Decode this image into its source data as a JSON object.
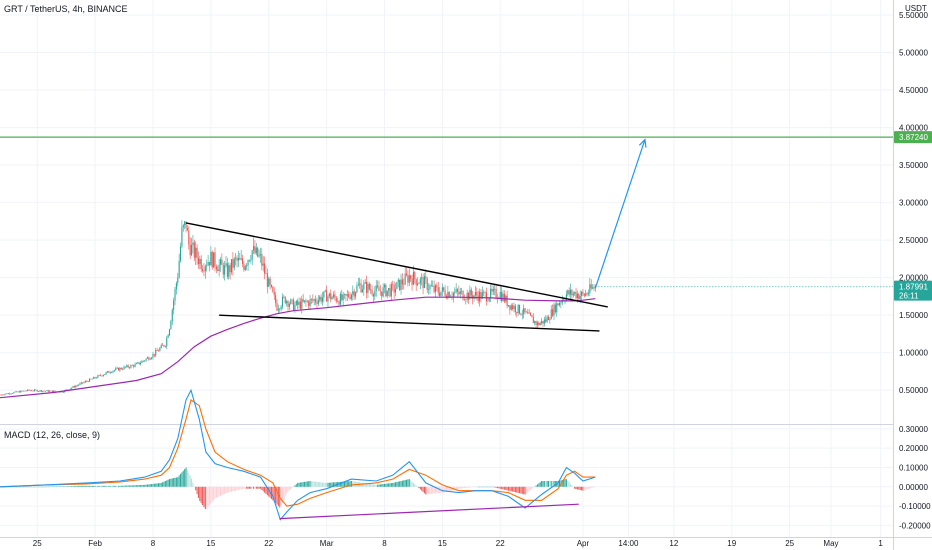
{
  "header": {
    "symbol_line": "GRT / TetherUS, 4h, BINANCE",
    "macd_line": "MACD (12, 26, close, 9)"
  },
  "colors": {
    "up": "#26a69a",
    "down": "#ef5350",
    "ma": "#9c27b0",
    "horizontal_line": "#4caf50",
    "arrow": "#2196f3",
    "macd": "#2196f3",
    "signal": "#ff6d00",
    "tag_green": "#4caf50",
    "tag_price": "#26a69a",
    "divergence_line": "#9c27b0"
  },
  "chart_data": {
    "type": "candlestick",
    "price_axis": {
      "unit_label": "USDT",
      "ticks": [
        "5.50000",
        "5.00000",
        "4.50000",
        "4.00000",
        "3.50000",
        "3.00000",
        "2.50000",
        "2.00000",
        "1.50000",
        "1.00000",
        "0.50000"
      ],
      "tick_values": [
        5.5,
        5.0,
        4.5,
        4.0,
        3.5,
        3.0,
        2.5,
        2.0,
        1.5,
        1.0,
        0.5
      ],
      "ylim": [
        0.05,
        5.7
      ]
    },
    "macd_axis": {
      "ticks": [
        "0.30000",
        "0.20000",
        "0.10000",
        "0.00000",
        "-0.10000",
        "-0.20000"
      ],
      "tick_values": [
        0.3,
        0.2,
        0.1,
        0.0,
        -0.1,
        -0.2
      ],
      "ylim": [
        -0.26,
        0.32
      ]
    },
    "time_axis": {
      "labels": [
        "25",
        "Feb",
        "8",
        "15",
        "22",
        "Mar",
        "8",
        "15",
        "22",
        "Apr",
        "14:00",
        "12",
        "19",
        "25",
        "May",
        "1"
      ],
      "label_days": [
        -7,
        0,
        7,
        14,
        21,
        28,
        35,
        42,
        49,
        59,
        64.5,
        70,
        77,
        84,
        89,
        95
      ],
      "xlim_days": [
        -11.5,
        96.5
      ]
    },
    "price_path": {
      "x_days": [
        -11.5,
        -8,
        -4,
        -1,
        2,
        5,
        7,
        8.5,
        9,
        10,
        10.5,
        11,
        11.3,
        12,
        13,
        14,
        15,
        16,
        17,
        18,
        19,
        20,
        21,
        22,
        23,
        24,
        26,
        28,
        30,
        32,
        34,
        36,
        38,
        40,
        41,
        43,
        45,
        47,
        49,
        50,
        52,
        53.5,
        54.5,
        56,
        57,
        58,
        59,
        60.5
      ],
      "close": [
        0.44,
        0.5,
        0.48,
        0.62,
        0.76,
        0.84,
        0.97,
        1.12,
        1.35,
        2.05,
        2.6,
        2.72,
        2.45,
        2.33,
        2.18,
        2.26,
        2.16,
        2.08,
        2.22,
        2.18,
        2.36,
        2.25,
        1.9,
        1.62,
        1.72,
        1.62,
        1.68,
        1.76,
        1.7,
        1.9,
        1.82,
        1.83,
        2.02,
        1.92,
        1.83,
        1.8,
        1.77,
        1.76,
        1.79,
        1.65,
        1.52,
        1.38,
        1.43,
        1.66,
        1.78,
        1.79,
        1.76,
        1.88
      ]
    },
    "moving_average": {
      "x_days": [
        -11.5,
        -5,
        0,
        5,
        8,
        10,
        12,
        14,
        16,
        18,
        20,
        22,
        24,
        28,
        32,
        36,
        40,
        44,
        48,
        52,
        56,
        58,
        59,
        60.5
      ],
      "values": [
        0.4,
        0.47,
        0.55,
        0.63,
        0.72,
        0.88,
        1.08,
        1.22,
        1.31,
        1.39,
        1.46,
        1.52,
        1.56,
        1.6,
        1.65,
        1.7,
        1.74,
        1.74,
        1.73,
        1.7,
        1.69,
        1.69,
        1.7,
        1.72
      ]
    },
    "trendlines": [
      {
        "x_days": [
          11,
          62
        ],
        "y": [
          2.73,
          1.61
        ]
      },
      {
        "x_days": [
          15,
          61
        ],
        "y": [
          1.5,
          1.29
        ]
      }
    ],
    "horizontal_line": {
      "value": 3.8724,
      "label": "3.87240"
    },
    "projection_arrow": {
      "x_days": [
        60.5,
        66.5
      ],
      "y": [
        1.86,
        3.84
      ]
    },
    "last_price": {
      "value": 1.87991,
      "label": "1.87991",
      "countdown": "26:11"
    },
    "macd": {
      "x_days": [
        -11.5,
        -6,
        -1,
        3,
        6,
        8,
        9,
        10,
        11,
        11.6,
        12.6,
        13.4,
        14.5,
        16,
        18,
        20,
        21.5,
        22.4,
        23.2,
        24.5,
        26,
        28,
        31,
        34,
        36,
        38,
        40,
        42,
        44,
        46,
        48,
        50,
        52,
        54,
        56,
        57,
        58,
        59,
        60.5
      ],
      "macd": [
        0.0,
        0.01,
        0.02,
        0.03,
        0.05,
        0.08,
        0.14,
        0.25,
        0.45,
        0.5,
        0.35,
        0.18,
        0.12,
        0.1,
        0.08,
        0.05,
        -0.05,
        -0.17,
        -0.13,
        -0.07,
        -0.03,
        -0.01,
        0.04,
        0.03,
        0.06,
        0.13,
        0.02,
        -0.02,
        -0.03,
        -0.02,
        -0.02,
        -0.05,
        -0.11,
        -0.04,
        0.02,
        0.1,
        0.07,
        0.03,
        0.05
      ],
      "signal": [
        0.0,
        0.01,
        0.015,
        0.025,
        0.04,
        0.06,
        0.1,
        0.2,
        0.35,
        0.45,
        0.42,
        0.3,
        0.18,
        0.13,
        0.09,
        0.06,
        0.02,
        -0.06,
        -0.1,
        -0.09,
        -0.06,
        -0.03,
        0.01,
        0.02,
        0.04,
        0.09,
        0.06,
        0.01,
        -0.02,
        -0.02,
        -0.02,
        -0.03,
        -0.07,
        -0.07,
        -0.01,
        0.06,
        0.08,
        0.05,
        0.05
      ],
      "divergence_line": {
        "x_days": [
          22.3,
          58.5
        ],
        "y": [
          -0.165,
          -0.09
        ]
      }
    }
  }
}
